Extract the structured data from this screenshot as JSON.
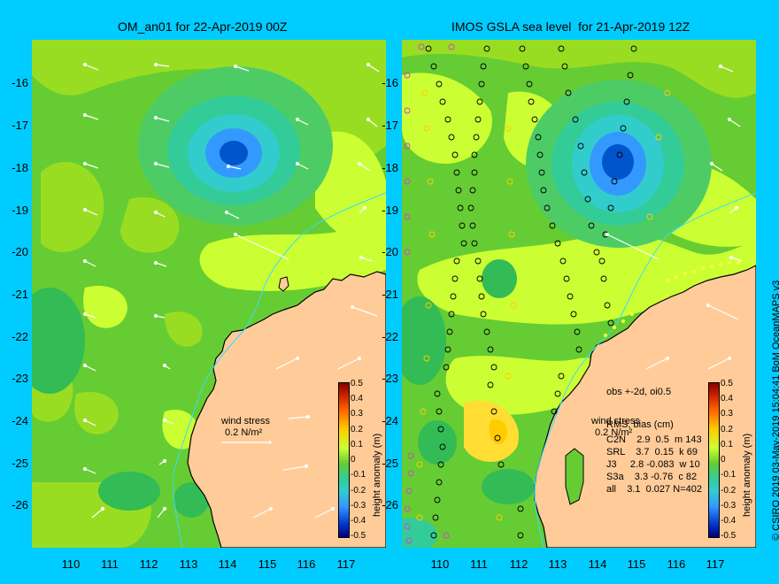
{
  "left_panel": {
    "title": "OM_an01 for 22-Apr-2019 00Z",
    "y_ticks": [
      "-16",
      "-17",
      "-18",
      "-19",
      "-20",
      "-21",
      "-22",
      "-23",
      "-24",
      "-25",
      "-26"
    ],
    "x_ticks": [
      "110",
      "111",
      "112",
      "113",
      "114",
      "115",
      "116",
      "117"
    ],
    "wind_label_line1": "wind stress",
    "wind_label_line2": "0.2 N/m²",
    "colorbar_title": "height anomaly (m)"
  },
  "right_panel": {
    "title": "IMOS GSLA sea level  for 21-Apr-2019 12Z",
    "y_ticks": [
      "-16",
      "-17",
      "-18",
      "-19",
      "-20",
      "-21",
      "-22",
      "-23",
      "-24",
      "-25",
      "-26"
    ],
    "x_ticks": [
      "110",
      "111",
      "112",
      "113",
      "114",
      "115",
      "116",
      "117"
    ],
    "wind_label_line1": "wind stress",
    "wind_label_line2": "0.2 N/m²",
    "obs_header": "obs +-2d, oi0.5",
    "stats_header": "RMS, bias (cm)",
    "stats_rows": [
      "C2N    2.9  0.5  m 143",
      "SRL    3.7  0.15  k 69",
      "J3     2.8 -0.083  w 10",
      "S3a    3.3 -0.76  c 82",
      "all    3.1  0.027 N=402"
    ],
    "colorbar_title": "height anomaly (m)"
  },
  "colorbar_ticks": [
    "0.5",
    "0.4",
    "0.3",
    "0.2",
    "0.1",
    "0",
    "-0.1",
    "-0.2",
    "-0.3",
    "-0.4",
    "-0.5"
  ],
  "credit": "© CSIRO 2019   03-May-2019 15:04:41  BoM OceanMAPS v3",
  "colors": {
    "background": "#00ccff",
    "land": "#ffcc99",
    "ocean_base": "#66cc33",
    "bright_green": "#99dd22",
    "yellow_green": "#ccff33",
    "cyan_low": "#33cccc",
    "blue_low": "#3399ff",
    "dark_blue_core": "#0055cc",
    "coast": "#000000",
    "bathymetry": "#33ddff"
  }
}
